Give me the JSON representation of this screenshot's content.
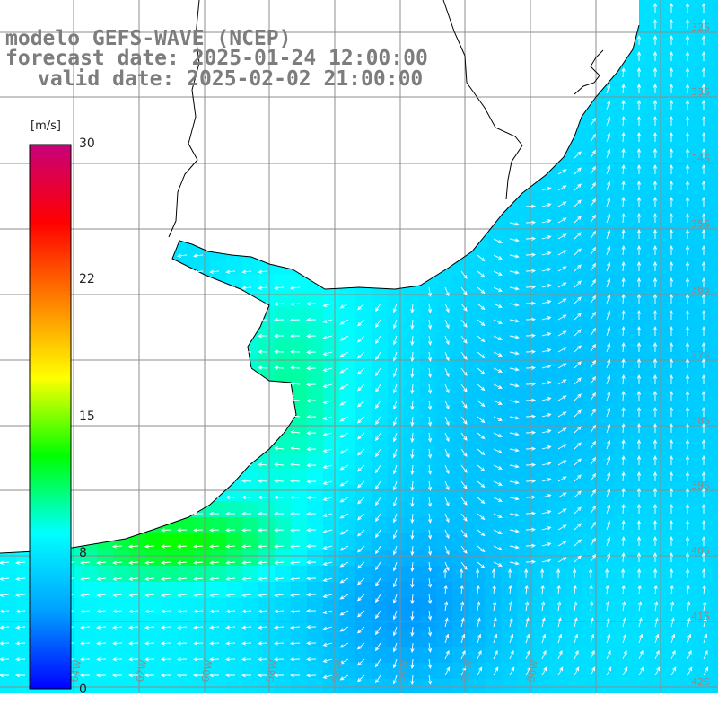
{
  "header": {
    "line1": "modelo GEFS-WAVE (NCEP)",
    "line2": "forecast date: 2025-01-24 12:00:00",
    "line3": "valid date: 2025-02-02 21:00:00"
  },
  "colorbar": {
    "unit": "[m/s]",
    "ticks": [
      "30",
      "22",
      "15",
      "8",
      "0"
    ],
    "range": [
      0,
      30
    ],
    "colors": [
      "#0000ff",
      "#00a0ff",
      "#00ffff",
      "#00ff00",
      "#ffff00",
      "#ff8000",
      "#ff0000",
      "#c8007a"
    ]
  },
  "map": {
    "land_color": "#ffffff",
    "grid_color": "#8c8c8c",
    "coast_color": "#000000",
    "arrow_color": "#ffffff",
    "lat_labels": [
      "32S",
      "33S",
      "34S",
      "35S",
      "36S",
      "37S",
      "38S",
      "39S",
      "40S",
      "41S",
      "42S"
    ],
    "lon_labels": [
      "64W",
      "62W",
      "60W",
      "58W",
      "56W",
      "54W",
      "52W",
      "50W"
    ]
  }
}
